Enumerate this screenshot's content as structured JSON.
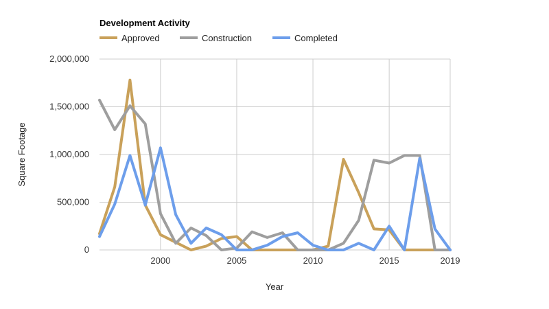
{
  "chart_data": {
    "type": "line",
    "title": "Development Activity",
    "xlabel": "Year",
    "ylabel": "Square Footage",
    "xlim": [
      1996,
      2019
    ],
    "ylim": [
      0,
      2000000
    ],
    "x_ticks": [
      2000,
      2005,
      2010,
      2015,
      2019
    ],
    "x_tick_labels": [
      "2000",
      "2005",
      "2010",
      "2015",
      "2019"
    ],
    "y_ticks": [
      0,
      500000,
      1000000,
      1500000,
      2000000
    ],
    "y_tick_labels": [
      "0",
      "500,000",
      "1,000,000",
      "1,500,000",
      "2,000,000"
    ],
    "grid": true,
    "legend_position": "top-left",
    "x": [
      1996,
      1997,
      1998,
      1999,
      2000,
      2001,
      2002,
      2003,
      2004,
      2005,
      2006,
      2007,
      2008,
      2009,
      2010,
      2011,
      2012,
      2013,
      2014,
      2015,
      2016,
      2017,
      2018,
      2019
    ],
    "series": [
      {
        "name": "Approved",
        "color": "#c9a15a",
        "values": [
          170000,
          660000,
          1780000,
          470000,
          160000,
          80000,
          0,
          40000,
          120000,
          140000,
          0,
          0,
          0,
          0,
          0,
          40000,
          950000,
          600000,
          220000,
          210000,
          0,
          0,
          0,
          0
        ]
      },
      {
        "name": "Construction",
        "color": "#9e9e9e",
        "values": [
          1570000,
          1260000,
          1510000,
          1320000,
          380000,
          70000,
          230000,
          150000,
          0,
          20000,
          190000,
          130000,
          180000,
          0,
          0,
          0,
          70000,
          310000,
          940000,
          910000,
          990000,
          990000,
          0,
          0
        ]
      },
      {
        "name": "Completed",
        "color": "#6d9eeb",
        "values": [
          140000,
          480000,
          990000,
          470000,
          1070000,
          370000,
          70000,
          230000,
          160000,
          0,
          0,
          50000,
          140000,
          180000,
          50000,
          0,
          0,
          70000,
          0,
          250000,
          0,
          960000,
          220000,
          0
        ]
      }
    ]
  }
}
